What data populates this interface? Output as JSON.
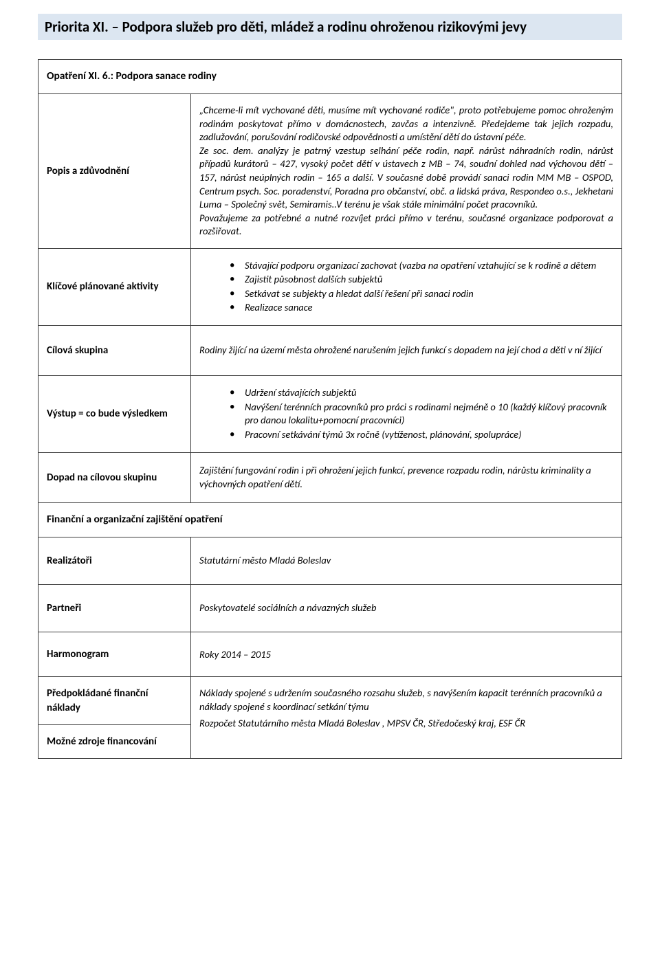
{
  "title": "Priorita XI. – Podpora služeb pro děti, mládež a rodinu ohroženou rizikovými jevy",
  "opatreni": "Opatření  XI. 6.: Podpora sanace rodiny",
  "rows": {
    "popis_label": "Popis a zdůvodnění",
    "popis_text": "„Chceme-li mít vychované děti, musíme mít vychované rodiče\", proto potřebujeme pomoc ohroženým rodinám poskytovat přímo v domácnostech, zavčas a intenzivně. Předejdeme tak jejich rozpadu, zadlužování, porušování rodičovské odpovědnosti a umístění dětí do ústavní péče.\nZe soc. dem. analýzy je patrný vzestup selhání péče rodin, např. nárůst náhradních rodin, nárůst případů kurátorů – 427, vysoký počet dětí v ústavech z MB – 74, soudní dohled nad výchovou dětí – 157, nárůst neúplných rodin – 165 a další. V současné době provádí sanaci rodin MM MB – OSPOD, Centrum psych. Soc. poradenství, Poradna pro občanství, obč. a lidská práva, Respondeo o.s., Jekhetani Luma – Společný svět, Semiramis..V terénu je však stále minimální počet pracovníků.\nPovažujeme za potřebné a nutné rozvíjet práci přímo v terénu, současné organizace podporovat a rozšiřovat.",
    "klicove_label": "Klíčové plánované aktivity",
    "klicove_items": [
      "Stávající podporu organizací zachovat (vazba na opatření vztahující se k rodině a dětem",
      "Zajistit působnost dalších subjektů",
      "Setkávat se subjekty a hledat další řešení při sanaci rodin",
      "Realizace sanace"
    ],
    "cilova_label": "Cílová skupina",
    "cilova_text": "Rodiny žijící na území města ohrožené narušením jejich funkcí s dopadem na její chod a děti v ní žijící",
    "vystup_label": "Výstup = co bude výsledkem",
    "vystup_items": [
      "Udržení stávajících subjektů",
      "Navýšení terénních pracovníků pro práci s rodinami nejméně o 10 (každý klíčový pracovník pro danou lokalitu+pomocní pracovníci)",
      "Pracovní setkávání týmů 3x ročně (vytíženost, plánování, spolupráce)"
    ],
    "dopad_label": "Dopad na cílovou skupinu",
    "dopad_text": "Zajištění fungování rodin i při ohrožení jejich funkcí, prevence rozpadu rodin, nárůstu kriminality a výchovných opatření dětí.",
    "financni_header": "Finanční a organizační zajištění opatření",
    "realizatori_label": "Realizátoři",
    "realizatori_text": "Statutární město Mladá Boleslav",
    "partneri_label": "Partneři",
    "partneri_text": "Poskytovatelé sociálních a návazných služeb",
    "harmonogram_label": "Harmonogram",
    "harmonogram_text": "Roky 2014 – 2015",
    "naklady_label": "Předpokládané finanční náklady",
    "naklady_text": "Náklady spojené s udržením současného rozsahu služeb, s navýšením kapacit terénních pracovníků a náklady spojené s koordinací setkání týmu",
    "zdroje_label": "Možné zdroje financování",
    "zdroje_text": "Rozpočet Statutárního města Mladá Boleslav , MPSV ČR, Středočeský kraj, ESF ČR"
  },
  "colors": {
    "title_bg": "#dce6f1",
    "border": "#3b3b3b",
    "text": "#000000",
    "page_bg": "#ffffff"
  }
}
